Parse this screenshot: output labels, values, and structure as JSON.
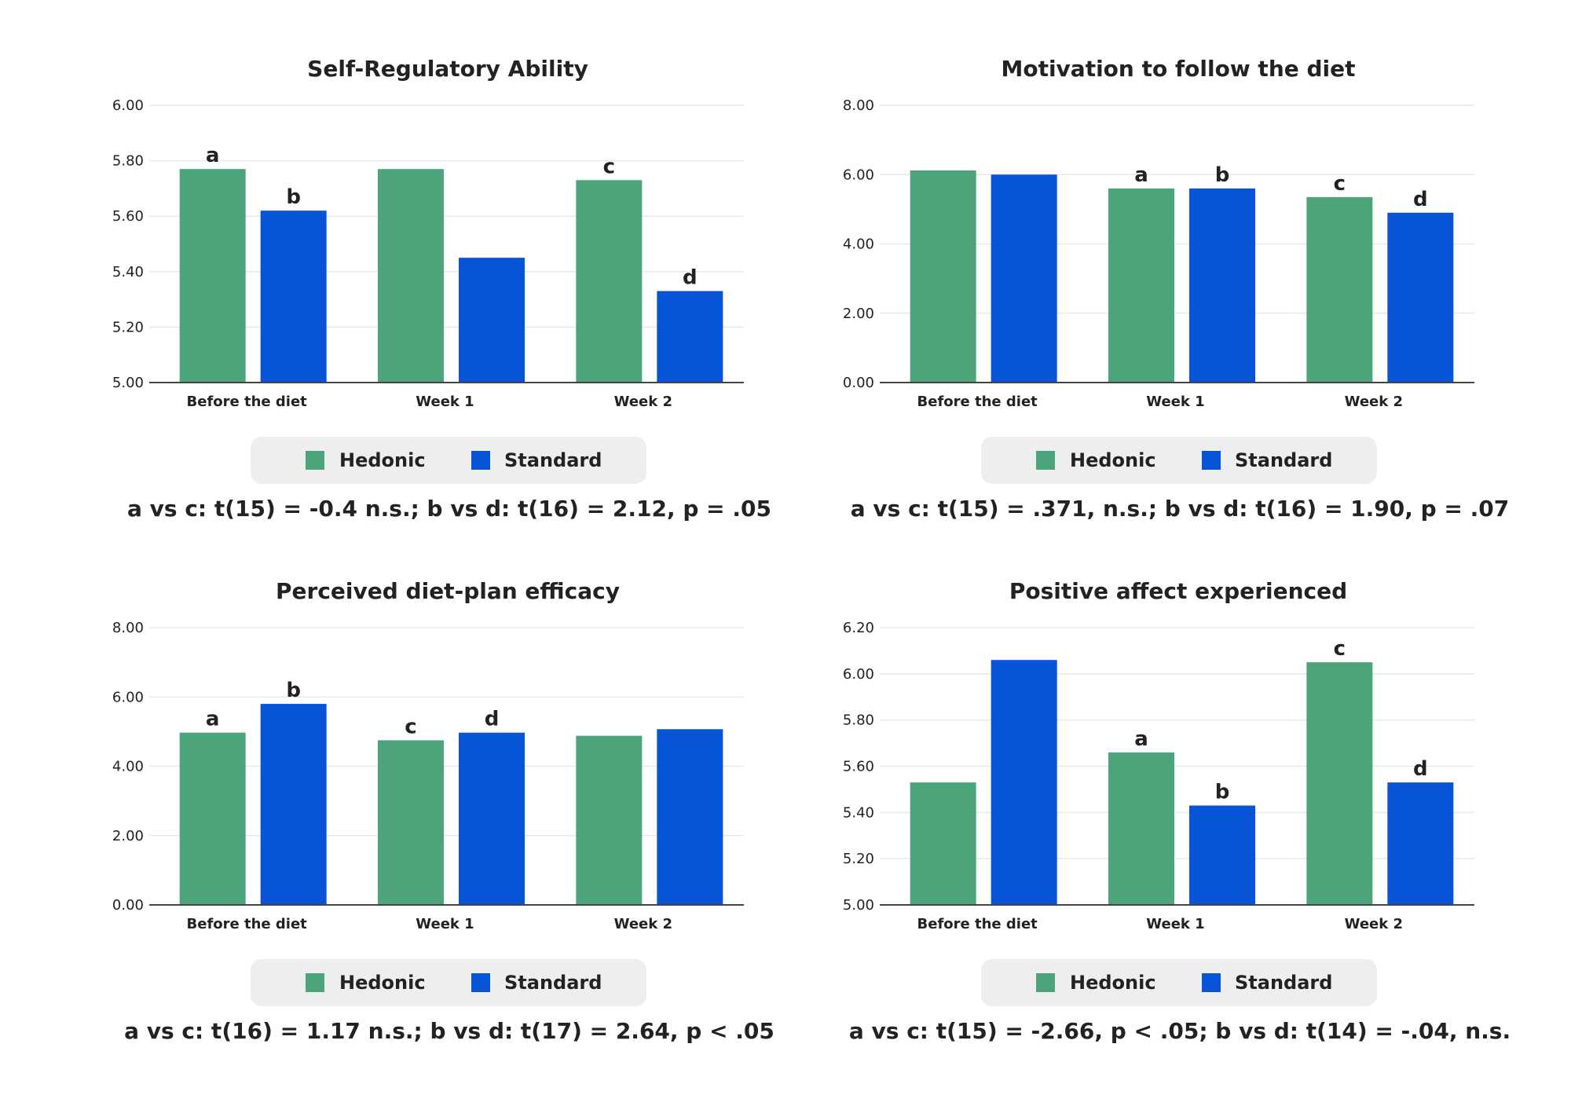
{
  "colors": {
    "hedonic": "#4ca57a",
    "standard": "#0755d6",
    "grid": "#e8e8e8",
    "axis": "#444444",
    "legend_bg": "#eeeeee"
  },
  "chart_data": [
    {
      "type": "bar",
      "title": "Self-Regulatory Ability",
      "categories": [
        "Before the diet",
        "Week 1",
        "Week 2"
      ],
      "series": [
        {
          "name": "Hedonic",
          "values": [
            5.77,
            5.77,
            5.73
          ]
        },
        {
          "name": "Standard",
          "values": [
            5.62,
            5.45,
            5.33
          ]
        }
      ],
      "ylim": [
        5.0,
        6.0
      ],
      "yticks": [
        "5.00",
        "5.20",
        "5.40",
        "5.60",
        "5.80",
        "6.00"
      ],
      "bar_labels": [
        [
          "a",
          "",
          "c"
        ],
        [
          "b",
          "",
          "d"
        ]
      ],
      "grid": true,
      "legend": "bottom-center",
      "note": "a vs c: t(15) = -0.4 n.s.; b vs d: t(16) = 2.12, p = .05"
    },
    {
      "type": "bar",
      "title": "Motivation to follow the diet",
      "categories": [
        "Before the diet",
        "Week 1",
        "Week 2"
      ],
      "series": [
        {
          "name": "Hedonic",
          "values": [
            6.12,
            5.6,
            5.35
          ]
        },
        {
          "name": "Standard",
          "values": [
            6.0,
            5.6,
            4.9
          ]
        }
      ],
      "ylim": [
        0,
        8
      ],
      "yticks": [
        "0.00",
        "2.00",
        "4.00",
        "6.00",
        "8.00"
      ],
      "bar_labels": [
        [
          "",
          "a",
          "c"
        ],
        [
          "",
          "b",
          "d"
        ]
      ],
      "grid": true,
      "legend": "bottom-center",
      "note": "a vs c: t(15) = .371, n.s.; b vs d: t(16) = 1.90, p = .07"
    },
    {
      "type": "bar",
      "title": "Perceived diet-plan efficacy",
      "categories": [
        "Before the diet",
        "Week 1",
        "Week 2"
      ],
      "series": [
        {
          "name": "Hedonic",
          "values": [
            4.97,
            4.75,
            4.88
          ]
        },
        {
          "name": "Standard",
          "values": [
            5.8,
            4.97,
            5.07
          ]
        }
      ],
      "ylim": [
        0,
        8
      ],
      "yticks": [
        "0.00",
        "2.00",
        "4.00",
        "6.00",
        "8.00"
      ],
      "bar_labels": [
        [
          "a",
          "c",
          ""
        ],
        [
          "b",
          "d",
          ""
        ]
      ],
      "grid": true,
      "legend": "bottom-center",
      "note": "a vs c: t(16) = 1.17 n.s.; b vs d: t(17) = 2.64, p < .05"
    },
    {
      "type": "bar",
      "title": "Positive affect experienced",
      "categories": [
        "Before the diet",
        "Week 1",
        "Week 2"
      ],
      "series": [
        {
          "name": "Hedonic",
          "values": [
            5.53,
            5.66,
            6.05
          ]
        },
        {
          "name": "Standard",
          "values": [
            6.06,
            5.43,
            5.53
          ]
        }
      ],
      "ylim": [
        5.0,
        6.2
      ],
      "yticks": [
        "5.00",
        "5.20",
        "5.40",
        "5.60",
        "5.80",
        "6.00",
        "6.20"
      ],
      "bar_labels": [
        [
          "",
          "a",
          "c"
        ],
        [
          "",
          "b",
          "d"
        ]
      ],
      "grid": true,
      "legend": "bottom-center",
      "note": "a vs c: t(15) = -2.66, p < .05; b vs d: t(14) = -.04, n.s."
    }
  ]
}
